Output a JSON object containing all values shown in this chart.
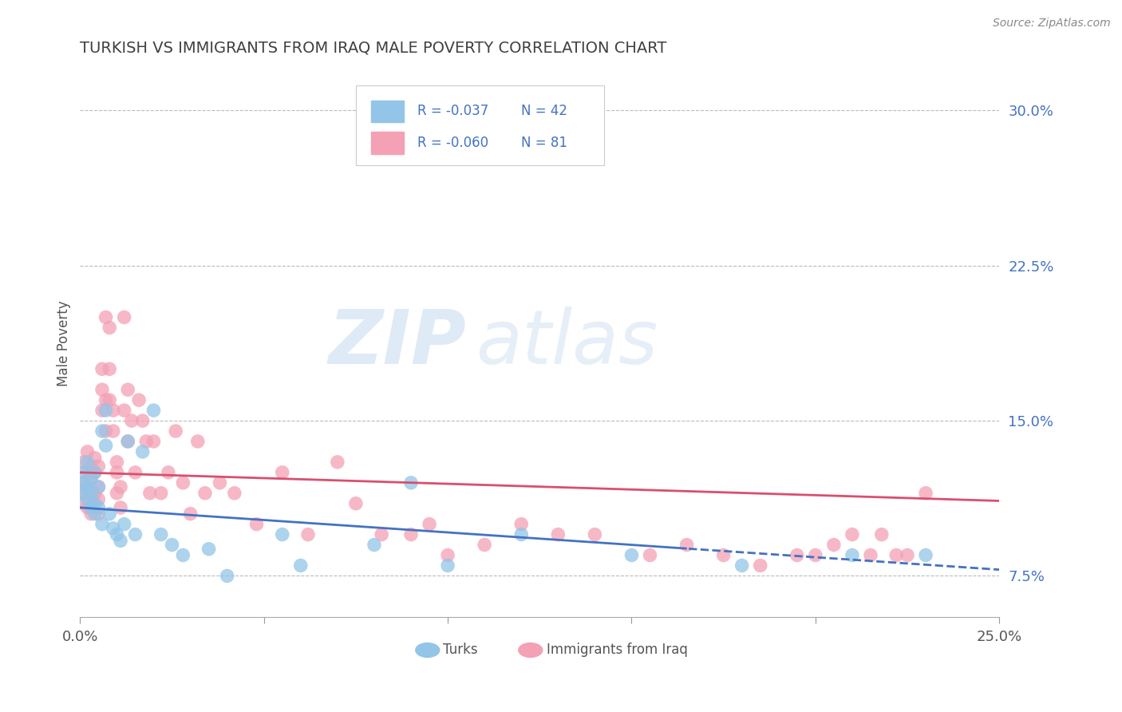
{
  "title": "TURKISH VS IMMIGRANTS FROM IRAQ MALE POVERTY CORRELATION CHART",
  "source": "Source: ZipAtlas.com",
  "xlabel_label": "Turks",
  "xlabel_label2": "Immigrants from Iraq",
  "ylabel": "Male Poverty",
  "xlim": [
    0.0,
    0.25
  ],
  "ylim": [
    0.055,
    0.32
  ],
  "yticks_right": [
    0.075,
    0.15,
    0.225,
    0.3
  ],
  "ytick_labels_right": [
    "7.5%",
    "15.0%",
    "22.5%",
    "30.0%"
  ],
  "color_turks": "#92C5E8",
  "color_iraq": "#F4A0B5",
  "line_color_turks": "#4472C4",
  "line_color_iraq": "#D94F6E",
  "legend_r1": "R = -0.037",
  "legend_n1": "N = 42",
  "legend_r2": "R = -0.060",
  "legend_n2": "N = 81",
  "background_color": "#FFFFFF",
  "grid_color": "#BBBBBB",
  "title_color": "#404040",
  "watermark_zip": "ZIP",
  "watermark_atlas": "atlas",
  "turks_x": [
    0.001,
    0.001,
    0.001,
    0.002,
    0.002,
    0.002,
    0.003,
    0.003,
    0.003,
    0.004,
    0.004,
    0.004,
    0.005,
    0.005,
    0.006,
    0.006,
    0.007,
    0.007,
    0.008,
    0.009,
    0.01,
    0.011,
    0.012,
    0.013,
    0.015,
    0.017,
    0.02,
    0.022,
    0.025,
    0.028,
    0.035,
    0.04,
    0.055,
    0.06,
    0.08,
    0.09,
    0.1,
    0.12,
    0.15,
    0.18,
    0.21,
    0.23
  ],
  "turks_y": [
    0.12,
    0.115,
    0.125,
    0.118,
    0.112,
    0.13,
    0.108,
    0.122,
    0.115,
    0.11,
    0.125,
    0.105,
    0.118,
    0.108,
    0.145,
    0.1,
    0.138,
    0.155,
    0.105,
    0.098,
    0.095,
    0.092,
    0.1,
    0.14,
    0.095,
    0.135,
    0.155,
    0.095,
    0.09,
    0.085,
    0.088,
    0.075,
    0.095,
    0.08,
    0.09,
    0.12,
    0.08,
    0.095,
    0.085,
    0.08,
    0.085,
    0.085
  ],
  "iraq_x": [
    0.001,
    0.001,
    0.001,
    0.001,
    0.002,
    0.002,
    0.002,
    0.002,
    0.003,
    0.003,
    0.003,
    0.003,
    0.004,
    0.004,
    0.004,
    0.005,
    0.005,
    0.005,
    0.005,
    0.006,
    0.006,
    0.006,
    0.007,
    0.007,
    0.007,
    0.008,
    0.008,
    0.008,
    0.009,
    0.009,
    0.01,
    0.01,
    0.01,
    0.011,
    0.011,
    0.012,
    0.012,
    0.013,
    0.013,
    0.014,
    0.015,
    0.016,
    0.017,
    0.018,
    0.019,
    0.02,
    0.022,
    0.024,
    0.026,
    0.028,
    0.03,
    0.032,
    0.034,
    0.038,
    0.042,
    0.048,
    0.055,
    0.062,
    0.07,
    0.075,
    0.082,
    0.09,
    0.095,
    0.1,
    0.11,
    0.12,
    0.13,
    0.14,
    0.155,
    0.165,
    0.175,
    0.185,
    0.195,
    0.2,
    0.205,
    0.21,
    0.215,
    0.218,
    0.222,
    0.225,
    0.23
  ],
  "iraq_y": [
    0.12,
    0.11,
    0.13,
    0.115,
    0.125,
    0.108,
    0.135,
    0.118,
    0.112,
    0.122,
    0.128,
    0.105,
    0.132,
    0.115,
    0.125,
    0.118,
    0.128,
    0.112,
    0.105,
    0.165,
    0.175,
    0.155,
    0.2,
    0.16,
    0.145,
    0.175,
    0.16,
    0.195,
    0.155,
    0.145,
    0.13,
    0.115,
    0.125,
    0.118,
    0.108,
    0.155,
    0.2,
    0.165,
    0.14,
    0.15,
    0.125,
    0.16,
    0.15,
    0.14,
    0.115,
    0.14,
    0.115,
    0.125,
    0.145,
    0.12,
    0.105,
    0.14,
    0.115,
    0.12,
    0.115,
    0.1,
    0.125,
    0.095,
    0.13,
    0.11,
    0.095,
    0.095,
    0.1,
    0.085,
    0.09,
    0.1,
    0.095,
    0.095,
    0.085,
    0.09,
    0.085,
    0.08,
    0.085,
    0.085,
    0.09,
    0.095,
    0.085,
    0.095,
    0.085,
    0.085,
    0.115
  ]
}
